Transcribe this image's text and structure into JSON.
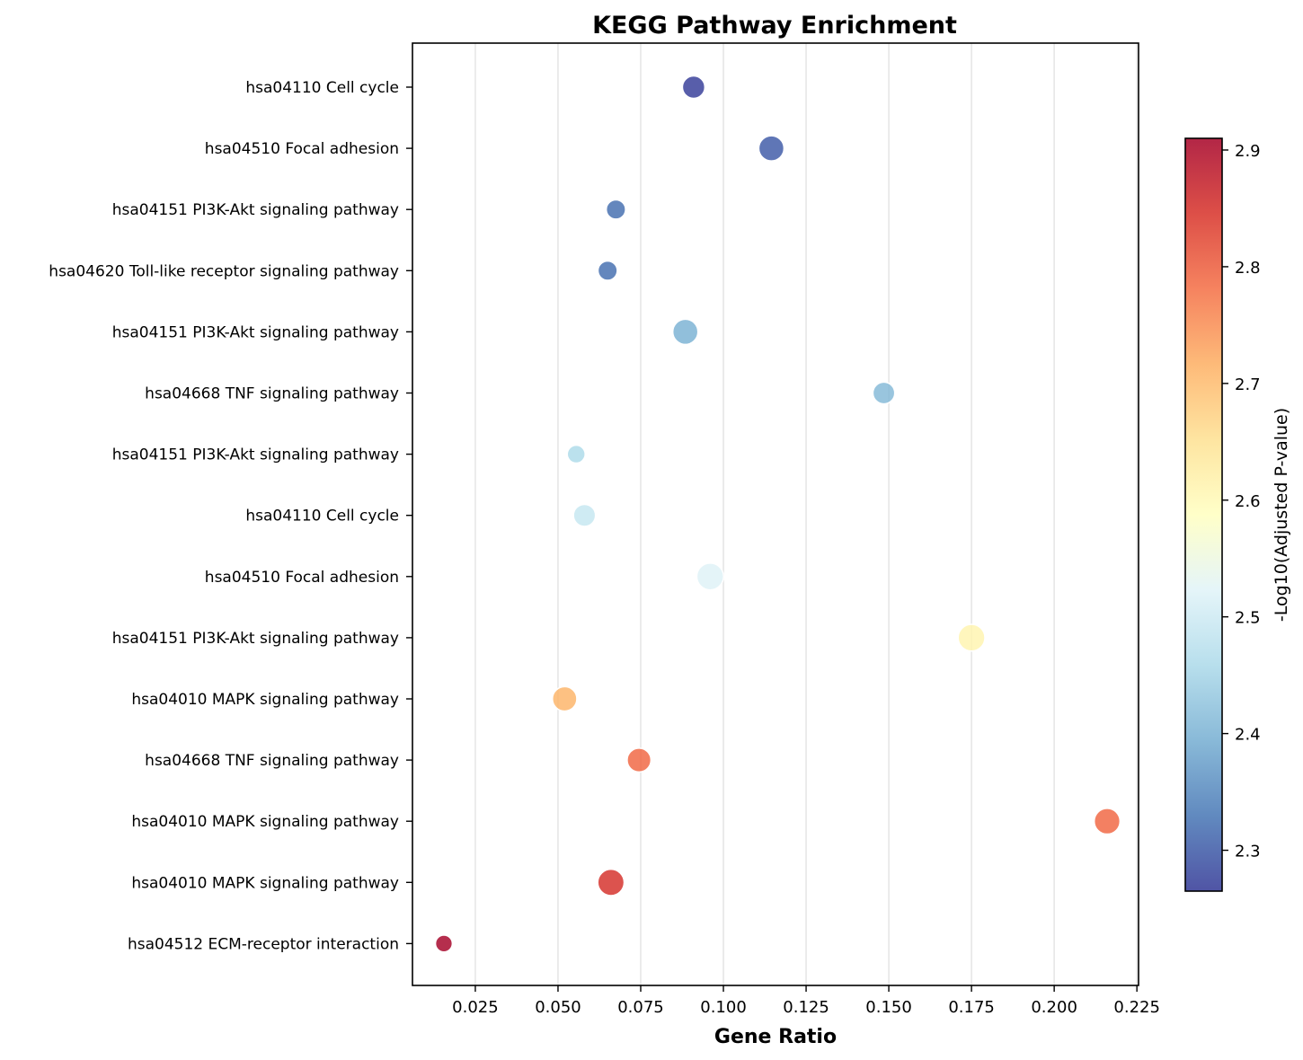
{
  "chart_data": {
    "type": "scatter",
    "title": "KEGG Pathway Enrichment",
    "xlabel": "Gene Ratio",
    "ylabel": "",
    "xlim": [
      0.006,
      0.2255
    ],
    "xticks": [
      "0.025",
      "0.050",
      "0.075",
      "0.100",
      "0.125",
      "0.150",
      "0.175",
      "0.200",
      "0.225"
    ],
    "grid": "vertical",
    "colorbar": {
      "label": "-Log10(Adjusted P-value)",
      "range": [
        2.265,
        2.91
      ],
      "ticks": [
        "2.3",
        "2.4",
        "2.5",
        "2.6",
        "2.7",
        "2.8",
        "2.9"
      ],
      "colormap": "RdYlBu_r",
      "colors": [
        "#313695",
        "#4575b4",
        "#74add1",
        "#abd9e9",
        "#e0f3f8",
        "#ffffbf",
        "#fee090",
        "#fdae61",
        "#f46d43",
        "#d73027",
        "#a50026"
      ]
    },
    "points": [
      {
        "label": "hsa04110 Cell cycle",
        "x": 0.091,
        "color_value": 2.27,
        "size": 0.68
      },
      {
        "label": "hsa04510 Focal adhesion",
        "x": 0.1145,
        "color_value": 2.3,
        "size": 0.82
      },
      {
        "label": "hsa04151 PI3K-Akt signaling pathway",
        "x": 0.0675,
        "color_value": 2.32,
        "size": 0.52
      },
      {
        "label": "hsa04620 Toll-like receptor signaling pathway",
        "x": 0.065,
        "color_value": 2.32,
        "size": 0.52
      },
      {
        "label": "hsa04151 PI3K-Akt signaling pathway",
        "x": 0.0885,
        "color_value": 2.4,
        "size": 0.82
      },
      {
        "label": "hsa04668 TNF signaling pathway",
        "x": 0.1485,
        "color_value": 2.41,
        "size": 0.65
      },
      {
        "label": "hsa04151 PI3K-Akt signaling pathway",
        "x": 0.0555,
        "color_value": 2.46,
        "size": 0.45
      },
      {
        "label": "hsa04110 Cell cycle",
        "x": 0.058,
        "color_value": 2.49,
        "size": 0.66
      },
      {
        "label": "hsa04510 Focal adhesion",
        "x": 0.096,
        "color_value": 2.52,
        "size": 0.9
      },
      {
        "label": "hsa04151 PI3K-Akt signaling pathway",
        "x": 0.175,
        "color_value": 2.61,
        "size": 0.9
      },
      {
        "label": "hsa04010 MAPK signaling pathway",
        "x": 0.052,
        "color_value": 2.71,
        "size": 0.78
      },
      {
        "label": "hsa04668 TNF signaling pathway",
        "x": 0.0745,
        "color_value": 2.79,
        "size": 0.75
      },
      {
        "label": "hsa04010 MAPK signaling pathway",
        "x": 0.216,
        "color_value": 2.79,
        "size": 0.85
      },
      {
        "label": "hsa04010 MAPK signaling pathway",
        "x": 0.066,
        "color_value": 2.85,
        "size": 0.88
      },
      {
        "label": "hsa04512 ECM-receptor interaction",
        "x": 0.0155,
        "color_value": 2.91,
        "size": 0.4
      }
    ]
  }
}
